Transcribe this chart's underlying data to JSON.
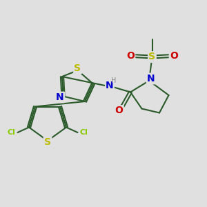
{
  "bg_color": "#e0e0e0",
  "bond_color": "#2a5a2a",
  "S_color": "#bbbb00",
  "N_color": "#0000cc",
  "O_color": "#cc0000",
  "Cl_color": "#88cc00",
  "H_color": "#888888",
  "line_width": 1.5,
  "font_size": 9,
  "xlim": [
    0,
    10
  ],
  "ylim": [
    0,
    10
  ]
}
